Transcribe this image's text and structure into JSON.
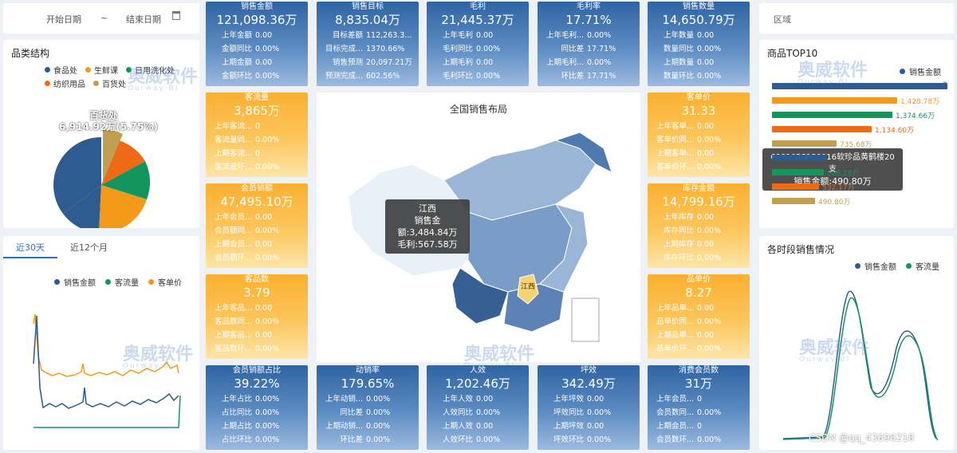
{
  "date_filter": {
    "start": "开始日期",
    "sep": "~",
    "end": "结束日期"
  },
  "region_filter": {
    "label": "区域"
  },
  "category": {
    "title": "品类结构",
    "legend": [
      {
        "name": "食品处",
        "color": "#2f5c90"
      },
      {
        "name": "生鲜课",
        "color": "#f39a1b"
      },
      {
        "name": "日用洗化处",
        "color": "#15955e"
      },
      {
        "name": "纺织用品",
        "color": "#ee6a17"
      },
      {
        "name": "百货处",
        "color": "#c0a050"
      }
    ],
    "highlight_name": "百货处",
    "highlight_value": "6,914.92万(5.75%)"
  },
  "trend": {
    "tabs": [
      "近30天",
      "近12个月"
    ],
    "legend": [
      {
        "name": "销售金额",
        "color": "#2f5c90"
      },
      {
        "name": "客流量",
        "color": "#15955e"
      },
      {
        "name": "客单价",
        "color": "#f39a1b"
      }
    ]
  },
  "kpis_top": [
    {
      "title": "销售金额",
      "value": "121,098.36万",
      "rows": [
        [
          "上年金额",
          "0.00"
        ],
        [
          "金额同比",
          "0.00%"
        ],
        [
          "上期金额",
          "0.00"
        ],
        [
          "金额环比",
          "0.00%"
        ]
      ]
    },
    {
      "title": "销售目标",
      "value": "8,835.04万",
      "rows": [
        [
          "目标差额",
          "112,263.3..."
        ],
        [
          "目标完成...",
          "1370.66%"
        ],
        [
          "销售预测",
          "20,097.21万"
        ],
        [
          "预测完成...",
          "602.56%"
        ]
      ]
    },
    {
      "title": "毛利",
      "value": "21,445.37万",
      "rows": [
        [
          "上年毛利",
          "0.00"
        ],
        [
          "毛利同比",
          "0.00%"
        ],
        [
          "上期毛利",
          "0.00"
        ],
        [
          "毛利环比",
          "0.00%"
        ]
      ]
    },
    {
      "title": "毛利率",
      "value": "17.71%",
      "rows": [
        [
          "上年毛利...",
          "0.00%"
        ],
        [
          "同比差",
          "17.71%"
        ],
        [
          "上期毛利...",
          "0.00%"
        ],
        [
          "环比差",
          "17.71%"
        ]
      ]
    },
    {
      "title": "销售数量",
      "value": "14,650.79万",
      "rows": [
        [
          "上年数量",
          "0.00"
        ],
        [
          "数量同比",
          "0.00%"
        ],
        [
          "上期数量",
          "0.00"
        ],
        [
          "数量环比",
          "0.00%"
        ]
      ]
    }
  ],
  "kpis_left": [
    {
      "title": "客流量",
      "value": "3,865万",
      "rows": [
        [
          "上年客流...",
          "0"
        ],
        [
          "客流量同...",
          "0.00%"
        ],
        [
          "上期客流...",
          "0"
        ],
        [
          "客流量环...",
          "0.00%"
        ]
      ]
    },
    {
      "title": "会员销额",
      "value": "47,495.10万",
      "rows": [
        [
          "上年会员...",
          "0.00"
        ],
        [
          "会员额同...",
          "0.00%"
        ],
        [
          "上期会员...",
          "0.00"
        ],
        [
          "会员额环...",
          "0.00%"
        ]
      ]
    },
    {
      "title": "客品数",
      "value": "3.79",
      "rows": [
        [
          "上年客品...",
          "0.00"
        ],
        [
          "客品数同...",
          "0.00%"
        ],
        [
          "上期客品...",
          "0.00"
        ],
        [
          "客品数环...",
          "0.00%"
        ]
      ]
    }
  ],
  "kpis_right": [
    {
      "title": "客单价",
      "value": "31.33",
      "rows": [
        [
          "上年客单...",
          "0.00"
        ],
        [
          "客单价同...",
          "0.00%"
        ],
        [
          "上期客单...",
          "0.00"
        ],
        [
          "客单价环...",
          "0.00%"
        ]
      ]
    },
    {
      "title": "库存金额",
      "value": "14,799.16万",
      "rows": [
        [
          "上年库存",
          "0.00"
        ],
        [
          "库存同比",
          "0.00%"
        ],
        [
          "上期库存",
          "0.00"
        ],
        [
          "库存环比",
          "0.00%"
        ]
      ]
    },
    {
      "title": "品单价",
      "value": "8.27",
      "rows": [
        [
          "上年品单...",
          "0.00"
        ],
        [
          "品单价同...",
          "0.00%"
        ],
        [
          "上期品单...",
          "0.00"
        ],
        [
          "品单价环...",
          "0.00%"
        ]
      ]
    }
  ],
  "kpis_bottom": [
    {
      "title": "会员销额占比",
      "value": "39.22%",
      "rows": [
        [
          "上年占比",
          "0.00%"
        ],
        [
          "占比同比",
          "0.00%"
        ],
        [
          "上期占比",
          "0.00%"
        ],
        [
          "占比环比",
          "0.00%"
        ]
      ]
    },
    {
      "title": "动销率",
      "value": "179.65%",
      "rows": [
        [
          "上年动销...",
          "0.00%"
        ],
        [
          "同比差",
          "0.00%"
        ],
        [
          "上期动销...",
          "0.00%"
        ],
        [
          "环比差",
          "0.00%"
        ]
      ]
    },
    {
      "title": "人效",
      "value": "1,202.46万",
      "rows": [
        [
          "上年人效",
          "0.00"
        ],
        [
          "人效同比",
          "0.00%"
        ],
        [
          "上期人效",
          "0.00"
        ],
        [
          "人效环比",
          "0.00%"
        ]
      ]
    },
    {
      "title": "坪效",
      "value": "342.49万",
      "rows": [
        [
          "上年坪效",
          "0.00"
        ],
        [
          "坪效同比",
          "0.00%"
        ],
        [
          "上期坪效",
          "0.00"
        ],
        [
          "坪效环比",
          "0.00%"
        ]
      ]
    },
    {
      "title": "消费会员数",
      "value": "31万",
      "rows": [
        [
          "上年会员...",
          "0"
        ],
        [
          "会员数同...",
          "0.00%"
        ],
        [
          "上期会员...",
          "0"
        ],
        [
          "会员数环...",
          "0.00%"
        ]
      ]
    }
  ],
  "map": {
    "title": "全国销售布局",
    "tooltip": {
      "region": "江西",
      "sales": "销售金额:3,484.84万",
      "profit": "毛利:567.58万"
    },
    "label": "江西"
  },
  "top10": {
    "title": "商品TOP10",
    "legend": "销售金额",
    "bars": [
      {
        "label": "2",
        "value": 2000,
        "color": "#2f5c90"
      },
      {
        "label": "1,428.78万",
        "value": 1428.78,
        "color": "#f39a1b"
      },
      {
        "label": "1,374.66万",
        "value": 1374.66,
        "color": "#15955e"
      },
      {
        "label": "1,134.60万",
        "value": 1134.6,
        "color": "#ee6a17"
      },
      {
        "label": "735.68万",
        "value": 735.68,
        "color": "#c0a050"
      },
      {
        "label": "",
        "value": 620,
        "color": "#2f5c90"
      },
      {
        "label": "588.28万",
        "value": 588.28,
        "color": "#15955e"
      },
      {
        "label": "532.17万",
        "value": 532.17,
        "color": "#ee6a17"
      },
      {
        "label": "490.80万",
        "value": 490.8,
        "color": "#c0a050"
      }
    ],
    "tooltip": {
      "name": "6901028180016软珍品黄鹤楼20支",
      "value": "销售金额:490.80万"
    }
  },
  "hourly": {
    "title": "各时段销售情况",
    "legend": [
      {
        "name": "销售金额",
        "color": "#2f5c90"
      },
      {
        "name": "客流量",
        "color": "#15955e"
      }
    ]
  },
  "watermark": {
    "cn": "奥威软件",
    "en": "Ourway·BI"
  },
  "credit": "CSDN @qq_43696218"
}
